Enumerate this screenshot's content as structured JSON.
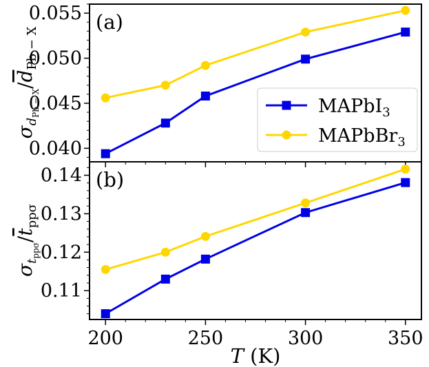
{
  "chart_data": [
    {
      "type": "line",
      "panel_label": "(a)",
      "ylabel": {
        "main": "σ",
        "sub": "d",
        "subsub": "Pb − X",
        "over": "d",
        "over_sub": "Pb − X"
      },
      "x": [
        200,
        230,
        250,
        300,
        350
      ],
      "xlim": [
        192,
        358
      ],
      "ylim": [
        0.0385,
        0.056
      ],
      "yticks": [
        0.04,
        0.045,
        0.05,
        0.055
      ],
      "ytick_labels": [
        "0.040",
        "0.045",
        "0.050",
        "0.055"
      ],
      "series": [
        {
          "name": "MAPbI",
          "name_sub": "3",
          "color": "#0000e6",
          "marker": "square",
          "values": [
            0.0394,
            0.0428,
            0.0458,
            0.0499,
            0.0529
          ]
        },
        {
          "name": "MAPbBr",
          "name_sub": "3",
          "color": "#ffd700",
          "marker": "circle",
          "values": [
            0.0456,
            0.047,
            0.0492,
            0.0529,
            0.0553
          ]
        }
      ],
      "legend_position": "lower-right"
    },
    {
      "type": "line",
      "panel_label": "(b)",
      "ylabel": {
        "main": "σ",
        "sub": "t",
        "subsub": "ppσ",
        "over": "t",
        "over_sub": "ppσ"
      },
      "xlabel": {
        "var": "T",
        "unit": "(K)"
      },
      "x": [
        200,
        230,
        250,
        300,
        350
      ],
      "xticks": [
        200,
        250,
        300,
        350
      ],
      "xtick_labels": [
        "200",
        "250",
        "300",
        "350"
      ],
      "xlim": [
        192,
        358
      ],
      "ylim": [
        0.1025,
        0.1435
      ],
      "yticks": [
        0.11,
        0.12,
        0.13,
        0.14
      ],
      "ytick_labels": [
        "0.11",
        "0.12",
        "0.13",
        "0.14"
      ],
      "series": [
        {
          "name": "MAPbI",
          "name_sub": "3",
          "color": "#0000e6",
          "marker": "square",
          "values": [
            0.104,
            0.113,
            0.1182,
            0.1303,
            0.1381
          ]
        },
        {
          "name": "MAPbBr",
          "name_sub": "3",
          "color": "#ffd700",
          "marker": "circle",
          "values": [
            0.1155,
            0.12,
            0.1241,
            0.1328,
            0.1416
          ]
        }
      ]
    }
  ]
}
